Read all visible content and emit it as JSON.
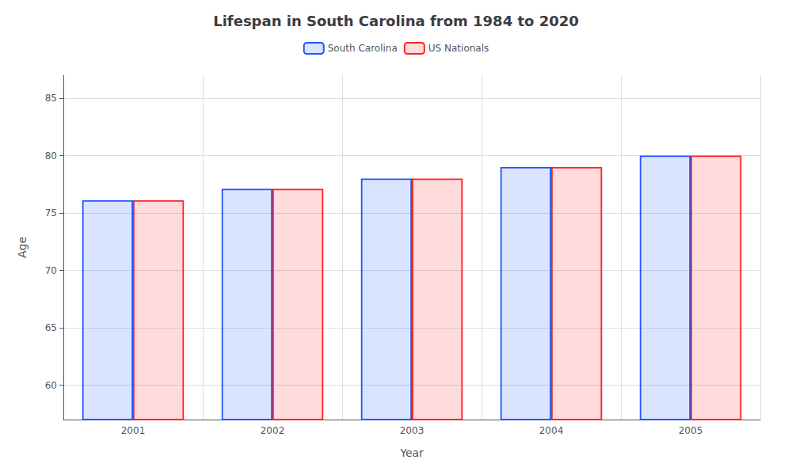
{
  "chart_data": {
    "type": "bar",
    "title": "Lifespan in South Carolina from 1984 to 2020",
    "xlabel": "Year",
    "ylabel": "Age",
    "categories": [
      "2001",
      "2002",
      "2003",
      "2004",
      "2005"
    ],
    "series": [
      {
        "name": "South Carolina",
        "color": "#2255ff",
        "values": [
          76.1,
          77.1,
          78.0,
          79.0,
          80.0
        ]
      },
      {
        "name": "US Nationals",
        "color": "#ff2222",
        "values": [
          76.1,
          77.1,
          78.0,
          79.0,
          80.0
        ]
      }
    ],
    "ylim": [
      57,
      87
    ],
    "yticks": [
      60,
      65,
      70,
      75,
      80,
      85
    ],
    "grid": true,
    "legend": "top"
  }
}
